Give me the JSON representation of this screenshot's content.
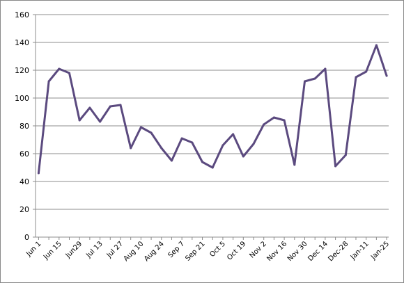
{
  "chart_data": {
    "type": "line",
    "title": "",
    "xlabel": "",
    "ylabel": "",
    "ylim": [
      0,
      160
    ],
    "yticks": [
      0,
      20,
      40,
      60,
      80,
      100,
      120,
      140,
      160
    ],
    "grid": "horizontal",
    "legend": "none",
    "x_tick_labels": [
      "Jun 1",
      "Jun 15",
      "Jun29",
      "Jul 13",
      "Jul 27",
      "Aug 10",
      "Aug 24",
      "Sep 7",
      "Sep 21",
      "Oct 5",
      "Oct 19",
      "Nov 2",
      "Nov 16",
      "Nov 30",
      "Dec 14",
      "Dec-28",
      "Jan-11",
      "Jan-25"
    ],
    "x": [
      "Jun 1",
      "Jun 8",
      "Jun 15",
      "Jun 22",
      "Jun29",
      "Jul 6",
      "Jul 13",
      "Jul 20",
      "Jul 27",
      "Aug 3",
      "Aug 10",
      "Aug 17",
      "Aug 24",
      "Aug 31",
      "Sep 7",
      "Sep 14",
      "Sep 21",
      "Sep 28",
      "Oct 5",
      "Oct 12",
      "Oct 19",
      "Oct 26",
      "Nov 2",
      "Nov 9",
      "Nov 16",
      "Nov 23",
      "Nov 30",
      "Dec 7",
      "Dec 14",
      "Dec 21",
      "Dec-28",
      "Jan-4",
      "Jan-11",
      "Jan-18",
      "Jan-25"
    ],
    "series": [
      {
        "color": "#5b4a7f",
        "values": [
          46,
          112,
          121,
          118,
          84,
          93,
          83,
          94,
          95,
          64,
          79,
          75,
          64,
          55,
          71,
          68,
          54,
          50,
          66,
          74,
          58,
          67,
          81,
          86,
          84,
          52,
          112,
          114,
          121,
          51,
          59,
          115,
          119,
          138,
          116
        ]
      }
    ]
  }
}
